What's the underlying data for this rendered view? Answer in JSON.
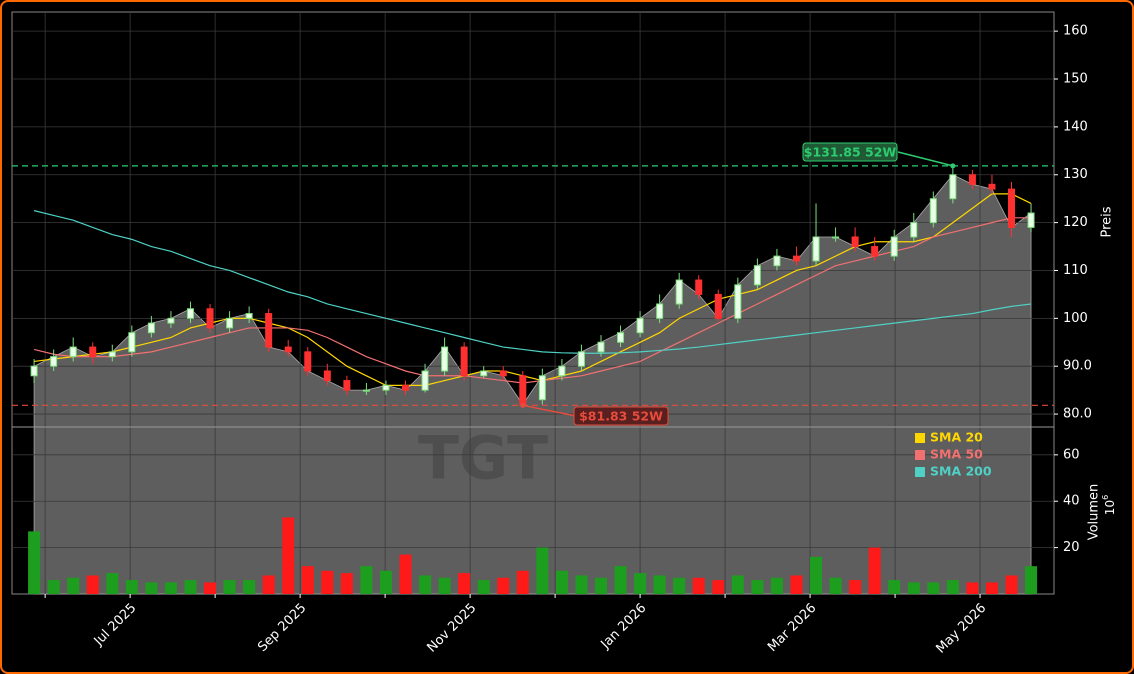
{
  "chart_data": {
    "type": "candlestick",
    "ticker": "TGT",
    "x": [
      5.87,
      6.1,
      6.33,
      6.56,
      6.79,
      7.02,
      7.25,
      7.48,
      7.71,
      7.94,
      8.17,
      8.4,
      8.63,
      8.86,
      9.09,
      9.32,
      9.55,
      9.78,
      10.01,
      10.24,
      10.47,
      10.7,
      10.93,
      11.16,
      11.39,
      11.62,
      11.85,
      12.08,
      12.31,
      12.54,
      12.77,
      13.0,
      13.23,
      13.46,
      13.69,
      13.92,
      14.15,
      14.38,
      14.61,
      14.84,
      15.07,
      15.3,
      15.53,
      15.76,
      15.99,
      16.22,
      16.45,
      16.68,
      16.91,
      17.14,
      17.37,
      17.6
    ],
    "xlim": [
      5.61,
      17.87
    ],
    "xticks": [
      {
        "value": 7,
        "label": "Jul 2025"
      },
      {
        "value": 9,
        "label": "Sep 2025"
      },
      {
        "value": 11,
        "label": "Nov 2025"
      },
      {
        "value": 13,
        "label": "Jan 2026"
      },
      {
        "value": 15,
        "label": "Mar 2026"
      },
      {
        "value": 17,
        "label": "May 2026"
      }
    ],
    "xminor": [
      6,
      8,
      10,
      12,
      14,
      16
    ],
    "open": [
      88,
      90,
      92,
      94,
      92,
      93,
      97,
      99,
      100,
      102,
      98,
      100,
      101,
      94,
      93,
      89,
      87,
      85,
      85,
      86,
      85,
      89,
      94,
      88,
      89,
      88,
      83,
      88,
      90,
      93,
      95,
      97,
      100,
      103,
      108,
      105,
      100,
      107,
      111,
      113,
      112,
      117,
      117,
      115,
      113,
      117,
      120,
      125,
      130,
      128,
      127,
      119
    ],
    "high": [
      91.5,
      93.5,
      96,
      95,
      94.5,
      98.5,
      100.5,
      101.5,
      103.5,
      103,
      101.5,
      102.5,
      102,
      95.5,
      94,
      90.5,
      88,
      86.5,
      87,
      87,
      90.5,
      96,
      95,
      90,
      90,
      89,
      89.5,
      91.5,
      94.5,
      96.5,
      98.5,
      101.5,
      105,
      109.5,
      109,
      106,
      108.5,
      112.5,
      114.5,
      115,
      124,
      119,
      119,
      117,
      118.5,
      122,
      126.5,
      131.85,
      131,
      130,
      128.5,
      124
    ],
    "low": [
      86.5,
      89,
      91,
      90.5,
      91,
      92,
      96,
      98,
      99,
      97,
      97,
      99,
      93,
      92,
      88,
      86,
      84,
      84,
      84,
      84,
      84.5,
      88,
      87,
      87.5,
      87,
      81.83,
      82,
      87,
      89,
      92,
      94,
      96,
      99,
      102,
      104,
      99.5,
      99,
      106,
      110,
      111,
      111,
      116,
      114,
      112,
      112,
      116,
      119,
      124,
      127,
      126,
      117,
      118
    ],
    "close": [
      90,
      92,
      94,
      92,
      93,
      97,
      99,
      100,
      102,
      98,
      100,
      101,
      94,
      93,
      89,
      87,
      85,
      85,
      86,
      85,
      89,
      94,
      88,
      89,
      88,
      82,
      88,
      90,
      93,
      95,
      97,
      100,
      103,
      108,
      105,
      100,
      107,
      111,
      113,
      112,
      117,
      117,
      115,
      113,
      117,
      120,
      125,
      130,
      128,
      127,
      119,
      122
    ],
    "up_color": "#7ee07e",
    "down_color": "#ff3030",
    "area_color": "#5e5e5e",
    "ylabel": "Preis",
    "ylim": [
      77.3,
      164
    ],
    "yticks": [
      {
        "value": 80,
        "label": "80.0"
      },
      {
        "value": 90,
        "label": "90.0"
      },
      100,
      110,
      120,
      130,
      140,
      150,
      160
    ],
    "grid": true,
    "legend": "upper right",
    "series": [
      {
        "name": "SMA 20",
        "color": "#ffd700",
        "values": [
          91,
          91.5,
          92,
          92.5,
          93,
          94,
          95,
          96,
          98,
          99,
          100,
          100,
          99,
          98,
          96,
          93,
          90,
          88,
          86,
          86,
          86,
          87,
          88,
          89,
          89,
          88,
          87,
          88,
          89,
          91,
          93,
          95,
          97,
          100,
          102,
          104,
          105,
          106,
          108,
          110,
          111,
          113,
          115,
          116,
          116,
          116,
          117,
          120,
          123,
          126,
          126,
          124
        ]
      },
      {
        "name": "SMA 50",
        "color": "#f27070",
        "values": [
          93.5,
          92.5,
          92,
          92,
          92,
          92.5,
          93,
          94,
          95,
          96,
          97,
          98,
          98,
          98,
          97.5,
          96,
          94,
          92,
          90.5,
          89,
          88,
          88,
          88,
          87.5,
          87,
          86.5,
          87,
          87.5,
          88,
          89,
          90,
          91,
          93,
          95,
          97,
          99,
          101,
          103,
          105,
          107,
          109,
          111,
          112,
          113,
          114,
          115,
          117,
          118,
          119,
          120,
          121,
          121
        ]
      },
      {
        "name": "SMA 200",
        "color": "#4fd1c5",
        "values": [
          122.5,
          121.5,
          120.5,
          119,
          117.5,
          116.5,
          115,
          114,
          112.5,
          111,
          110,
          108.5,
          107,
          105.5,
          104.5,
          103,
          102,
          101,
          100,
          99,
          98,
          97,
          96,
          95,
          94,
          93.5,
          93,
          92.8,
          92.7,
          92.7,
          92.8,
          93,
          93.3,
          93.6,
          94,
          94.5,
          95,
          95.5,
          96,
          96.5,
          97,
          97.5,
          98,
          98.5,
          99,
          99.5,
          100,
          100.5,
          101,
          101.8,
          102.5,
          103
        ]
      }
    ],
    "annotations": [
      {
        "text": "$131.85 52W",
        "value": 131.85,
        "color": "#2ecc71",
        "bg": "#1f5a34"
      },
      {
        "text": "$81.83 52W",
        "value": 81.83,
        "color": "#e74c3c",
        "bg": "#5a1f1f"
      }
    ],
    "volume": {
      "label": "Volumen",
      "unit_base": "10",
      "unit_exp": "6",
      "values": [
        27,
        6,
        7,
        8,
        9,
        6,
        5,
        5,
        6,
        5,
        6,
        6,
        8,
        33,
        12,
        10,
        9,
        12,
        10,
        17,
        8,
        7,
        9,
        6,
        7,
        10,
        20,
        10,
        8,
        7,
        12,
        9,
        8,
        7,
        7,
        6,
        8,
        6,
        7,
        8,
        16,
        7,
        6,
        20,
        6,
        5,
        5,
        6,
        5,
        5,
        8,
        12
      ],
      "up_color": "#1e9e1e",
      "down_color": "#ff1a1a",
      "ylim": [
        0,
        72
      ],
      "yticks": [
        20,
        40,
        60
      ]
    }
  }
}
